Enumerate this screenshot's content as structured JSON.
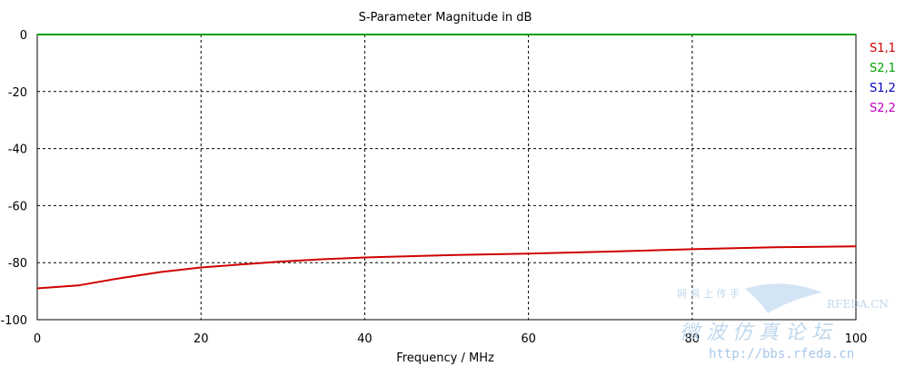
{
  "chart_data": {
    "type": "line",
    "title": "S-Parameter Magnitude in dB",
    "xlabel": "Frequency / MHz",
    "ylabel": "",
    "xlim": [
      0,
      100
    ],
    "ylim": [
      -100,
      0
    ],
    "x_ticks": [
      "0",
      "20",
      "40",
      "60",
      "80",
      "100"
    ],
    "y_ticks": [
      "0",
      "-20",
      "-40",
      "-60",
      "-80",
      "-100"
    ],
    "grid": true,
    "legend_position": "right",
    "legend": [
      {
        "name": "S1,1",
        "color": "#d00000"
      },
      {
        "name": "S2,1",
        "color": "#00a000"
      },
      {
        "name": "S1,2",
        "color": "#0000c0"
      },
      {
        "name": "S2,2",
        "color": "#c000c0"
      }
    ],
    "series": [
      {
        "name": "S1,1",
        "color": "#d00000",
        "x": [
          0,
          5,
          10,
          15,
          20,
          25,
          30,
          35,
          40,
          50,
          60,
          70,
          80,
          90,
          100
        ],
        "y": [
          -89,
          -88,
          -85.5,
          -83.3,
          -81.7,
          -80.6,
          -79.6,
          -78.8,
          -78.2,
          -77.4,
          -76.8,
          -76.1,
          -75.3,
          -74.6,
          -74.3
        ]
      },
      {
        "name": "S2,1",
        "color": "#00a000",
        "x": [
          0,
          100
        ],
        "y": [
          0,
          0
        ]
      }
    ]
  },
  "watermark": {
    "line1": "网 易 上 传 手",
    "brand": "RFEDA.CN",
    "cn_text": "微 波 仿 真 论 坛",
    "url": "http://bbs.rfeda.cn"
  }
}
